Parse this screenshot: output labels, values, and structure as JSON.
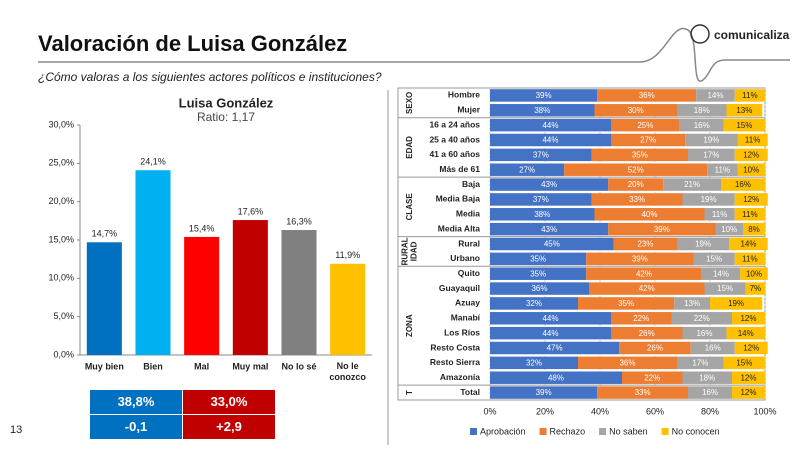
{
  "header": {
    "title": "Valoración de Luisa González",
    "subtitle": "¿Cómo valoras a los siguientes actores políticos e instituciones?",
    "logo": "comunicaliza"
  },
  "page_number": "13",
  "chart_data": [
    {
      "type": "bar",
      "title": "Luisa González",
      "subtitle": "Ratio: 1,17",
      "categories": [
        "Muy bien",
        "Bien",
        "Mal",
        "Muy mal",
        "No lo sé",
        "No le conozco"
      ],
      "values": [
        14.7,
        24.1,
        15.4,
        17.6,
        16.3,
        11.9
      ],
      "value_labels": [
        "14,7%",
        "24,1%",
        "15,4%",
        "17,6%",
        "16,3%",
        "11,9%"
      ],
      "colors": [
        "#0070c0",
        "#00b0f0",
        "#ff0000",
        "#c00000",
        "#808080",
        "#ffc000"
      ],
      "ylim": [
        0,
        30
      ],
      "yticks": [
        {
          "value": 0,
          "label": "0,0%"
        },
        {
          "value": 5,
          "label": "5,0%"
        },
        {
          "value": 10,
          "label": "10,0%"
        },
        {
          "value": 15,
          "label": "15,0%"
        },
        {
          "value": 20,
          "label": "20,0%"
        },
        {
          "value": 25,
          "label": "25,0%"
        },
        {
          "value": 30,
          "label": "30,0%"
        }
      ]
    },
    {
      "type": "stacked_barh",
      "groups": [
        {
          "label": [
            "SEXO"
          ],
          "categories": [
            "Hombre",
            "Mujer"
          ]
        },
        {
          "label": [
            "EDAD"
          ],
          "categories": [
            "16 a 24 años",
            "25 a 40 años",
            "41 a 60 años",
            "Más de 61"
          ]
        },
        {
          "label": [
            "CLASE"
          ],
          "categories": [
            "Baja",
            "Media Baja",
            "Media",
            "Media Alta"
          ]
        },
        {
          "label": [
            "RURAL",
            "IDAD"
          ],
          "categories": [
            "Rural",
            "Urbano"
          ]
        },
        {
          "label": [
            "ZONA"
          ],
          "categories": [
            "Quito",
            "Guayaquil",
            "Azuay",
            "Manabí",
            "Los Ríos",
            "Resto Costa",
            "Resto Sierra",
            "Amazonía"
          ]
        },
        {
          "label": [
            "T"
          ],
          "categories": [
            "Total"
          ]
        }
      ],
      "series": [
        {
          "name": "Aprobación",
          "color": "#4472c4",
          "values": [
            39,
            38,
            44,
            44,
            37,
            27,
            43,
            37,
            38,
            43,
            45,
            35,
            35,
            36,
            32,
            44,
            44,
            47,
            32,
            48,
            39
          ],
          "value_labels": [
            "39%",
            "38%",
            "44%",
            "44%",
            "37%",
            "27%",
            "43%",
            "37%",
            "38%",
            "43%",
            "45%",
            "35%",
            "35%",
            "36%",
            "32%",
            "44%",
            "44%",
            "47%",
            "32%",
            "48%",
            "39%"
          ]
        },
        {
          "name": "Rechazo",
          "color": "#ed7d31",
          "values": [
            36,
            30,
            25,
            27,
            35,
            52,
            20,
            33,
            40,
            39,
            23,
            39,
            42,
            42,
            35,
            22,
            26,
            26,
            36,
            22,
            33
          ],
          "value_labels": [
            "36%",
            "30%",
            "25%",
            "27%",
            "35%",
            "52%",
            "20%",
            "33%",
            "40%",
            "39%",
            "23%",
            "39%",
            "42%",
            "42%",
            "35%",
            "22%",
            "26%",
            "26%",
            "36%",
            "22%",
            "33%"
          ]
        },
        {
          "name": "No saben",
          "color": "#a5a5a5",
          "values": [
            14,
            18,
            16,
            19,
            17,
            11,
            21,
            19,
            11,
            10,
            19,
            15,
            14,
            15,
            13,
            22,
            16,
            16,
            17,
            18,
            16
          ],
          "value_labels": [
            "14%",
            "18%",
            "16%",
            "19%",
            "17%",
            "11%",
            "21%",
            "19%",
            "11%",
            "10%",
            "19%",
            "15%",
            "14%",
            "15%",
            "13%",
            "22%",
            "16%",
            "16%",
            "17%",
            "18%",
            "16%"
          ]
        },
        {
          "name": "No conocen",
          "color": "#ffc000",
          "values": [
            11,
            13,
            15,
            11,
            12,
            10,
            16,
            12,
            11,
            8,
            14,
            11,
            10,
            7,
            19,
            12,
            14,
            12,
            15,
            12,
            12
          ],
          "value_labels": [
            "11%",
            "13%",
            "15%",
            "11%",
            "12%",
            "10%",
            "16%",
            "12%",
            "11%",
            "8%",
            "14%",
            "11%",
            "10%",
            "7%",
            "19%",
            "12%",
            "14%",
            "12%",
            "15%",
            "12%",
            "12%"
          ]
        }
      ],
      "xlim": [
        0,
        100
      ],
      "xticks": [
        {
          "value": 0,
          "label": "0%"
        },
        {
          "value": 20,
          "label": "20%"
        },
        {
          "value": 40,
          "label": "40%"
        },
        {
          "value": 60,
          "label": "60%"
        },
        {
          "value": 80,
          "label": "80%"
        },
        {
          "value": 100,
          "label": "100%"
        }
      ]
    }
  ],
  "summary": {
    "rows": [
      [
        "38,8%",
        "33,0%"
      ],
      [
        "-0,1",
        "+2,9"
      ]
    ],
    "colors": [
      "#0070c0",
      "#c00000"
    ]
  }
}
